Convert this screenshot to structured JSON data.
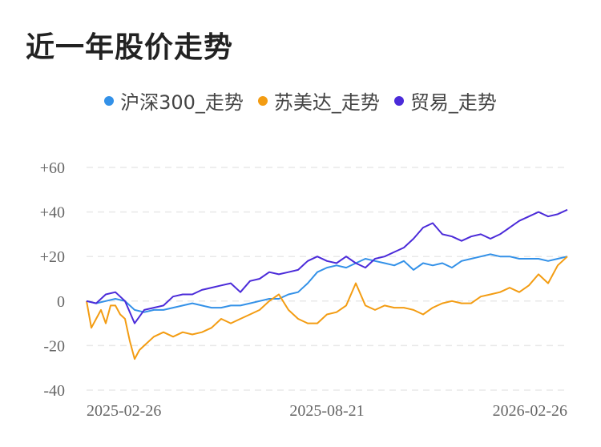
{
  "chart_data": {
    "type": "line",
    "title": "近一年股价走势",
    "xlabel": "",
    "ylabel": "",
    "ylim": [
      -40,
      60
    ],
    "yticks": [
      60,
      40,
      20,
      0,
      -20,
      -40
    ],
    "ytick_labels": [
      "+60",
      "+40",
      "+20",
      "0",
      "-20",
      "-40"
    ],
    "xtick_labels": [
      "2025-02-26",
      "2025-08-21",
      "2026-02-26"
    ],
    "legend_position": "top",
    "series": [
      {
        "name": "沪深300_走势",
        "color": "#3391e8",
        "x": [
          0,
          2,
          4,
          6,
          8,
          10,
          12,
          14,
          16,
          18,
          20,
          22,
          24,
          26,
          28,
          30,
          32,
          34,
          36,
          38,
          40,
          42,
          44,
          46,
          48,
          50,
          52,
          54,
          56,
          58,
          60,
          62,
          64,
          66,
          68,
          70,
          72,
          74,
          76,
          78,
          80,
          82,
          84,
          86,
          88,
          90,
          92,
          94,
          96,
          98,
          100
        ],
        "values": [
          0,
          -1,
          0,
          1,
          0,
          -4,
          -5,
          -4,
          -4,
          -3,
          -2,
          -1,
          -2,
          -3,
          -3,
          -2,
          -2,
          -1,
          0,
          1,
          1,
          3,
          4,
          8,
          13,
          15,
          16,
          15,
          17,
          19,
          18,
          17,
          16,
          18,
          14,
          17,
          16,
          17,
          15,
          18,
          19,
          20,
          21,
          20,
          20,
          19,
          19,
          19,
          18,
          19,
          20
        ]
      },
      {
        "name": "苏美达_走势",
        "color": "#f39c12",
        "x": [
          0,
          1,
          2,
          3,
          4,
          5,
          6,
          7,
          8,
          9,
          10,
          11,
          12,
          14,
          16,
          18,
          20,
          22,
          24,
          26,
          28,
          30,
          32,
          34,
          36,
          38,
          40,
          42,
          44,
          46,
          48,
          50,
          52,
          54,
          56,
          58,
          60,
          62,
          64,
          66,
          68,
          70,
          72,
          74,
          76,
          78,
          80,
          82,
          84,
          86,
          88,
          90,
          92,
          94,
          96,
          98,
          100
        ],
        "values": [
          0,
          -12,
          -8,
          -4,
          -10,
          -2,
          -2,
          -6,
          -8,
          -18,
          -26,
          -22,
          -20,
          -16,
          -14,
          -16,
          -14,
          -15,
          -14,
          -12,
          -8,
          -10,
          -8,
          -6,
          -4,
          0,
          3,
          -4,
          -8,
          -10,
          -10,
          -6,
          -5,
          -2,
          8,
          -2,
          -4,
          -2,
          -3,
          -3,
          -4,
          -6,
          -3,
          -1,
          0,
          -1,
          -1,
          2,
          3,
          4,
          6,
          4,
          7,
          12,
          8,
          16,
          20
        ]
      },
      {
        "name": "贸易_走势",
        "color": "#4b2bd9",
        "x": [
          0,
          2,
          4,
          6,
          8,
          10,
          12,
          14,
          16,
          18,
          20,
          22,
          24,
          26,
          28,
          30,
          32,
          34,
          36,
          38,
          40,
          42,
          44,
          46,
          48,
          50,
          52,
          54,
          56,
          58,
          60,
          62,
          64,
          66,
          68,
          70,
          72,
          74,
          76,
          78,
          80,
          82,
          84,
          86,
          88,
          90,
          92,
          94,
          96,
          98,
          100
        ],
        "values": [
          0,
          -1,
          3,
          4,
          0,
          -10,
          -4,
          -3,
          -2,
          2,
          3,
          3,
          5,
          6,
          7,
          8,
          4,
          9,
          10,
          13,
          12,
          13,
          14,
          18,
          20,
          18,
          17,
          20,
          17,
          15,
          19,
          20,
          22,
          24,
          28,
          33,
          35,
          30,
          29,
          27,
          29,
          30,
          28,
          30,
          33,
          36,
          38,
          40,
          38,
          39,
          41
        ]
      }
    ]
  }
}
